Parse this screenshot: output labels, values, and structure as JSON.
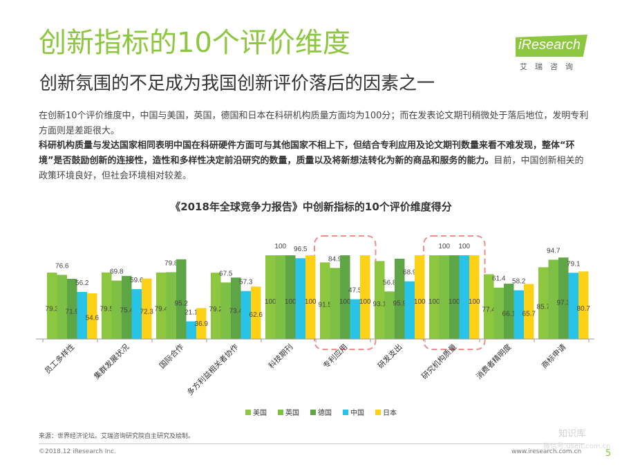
{
  "header": {
    "title": "创新指标的10个评价维度",
    "subtitle": "创新氛围的不足成为我国创新评价落后的因素之一",
    "logo_text": "iResearch",
    "logo_cn": "艾瑞咨询"
  },
  "body": {
    "para1": "在创新10个评价维度中，中国与美国，英国，德国和日本在科研机构质量方面均为100分；而在发表论文期刊稍微处于落后地位，发明专利方面则是差距很大。",
    "para2_bold": "科研机构质量与发达国家相同表明中国在科研硬件方面可与其他国家不相上下，但结合专利应用及论文期刊数量来看不难发现，整体“环境”是否鼓励创新的连接性，造性和多样性决定前沿研究的数量，质量以及将新想法转化为新的商品和服务的能力。",
    "para2_rest": "目前，中国创新相关的政策环境良好，但社会环境相对较差。"
  },
  "chart_data": {
    "type": "bar",
    "title": "《2018年全球竞争力报告》中创新指标的10个评价维度得分",
    "categories": [
      "员工多样性",
      "集群发展状况",
      "国际合作",
      "多方利益相关者协作",
      "科技期刊",
      "专利应用",
      "研发支出",
      "研究机构质量",
      "消费者精明度",
      "商标申请"
    ],
    "series": [
      {
        "name": "美国",
        "color": "#8dc63f",
        "values": [
          79.3,
          79.5,
          79.4,
          79.2,
          100,
          91.5,
          93.1,
          100,
          77.4,
          85.7
        ]
      },
      {
        "name": "英国",
        "color": "#7ebf45",
        "values": [
          76.6,
          69.8,
          79.8,
          67.5,
          100,
          84.9,
          56.8,
          100,
          61.4,
          94.7
        ]
      },
      {
        "name": "德国",
        "color": "#5da545",
        "values": [
          71.9,
          75.4,
          95.2,
          73.4,
          100,
          100,
          95.9,
          100,
          66.1,
          97.3
        ]
      },
      {
        "name": "中国",
        "color": "#29c3e8",
        "values": [
          56.2,
          59.6,
          21.1,
          57.3,
          96.5,
          47.5,
          68.9,
          100,
          58.2,
          79.1
        ]
      },
      {
        "name": "日本",
        "color": "#fcd116",
        "values": [
          54.6,
          72.3,
          36.9,
          62.6,
          100,
          100,
          100,
          100,
          65.7,
          80.7
        ]
      }
    ],
    "ylim": [
      0,
      100
    ],
    "highlighted_categories": [
      "专利应用",
      "研究机构质量"
    ],
    "legend_position": "bottom"
  },
  "footer": {
    "source": "来源：世界经济论坛。艾瑞咨询研究院自主研究及绘制。",
    "copyright": "©2018.12 iResearch Inc.",
    "website": "www.iresearch.com.cn",
    "page": "5",
    "watermark": "知识库",
    "watermark2": "微信号:useit.com.cn"
  }
}
